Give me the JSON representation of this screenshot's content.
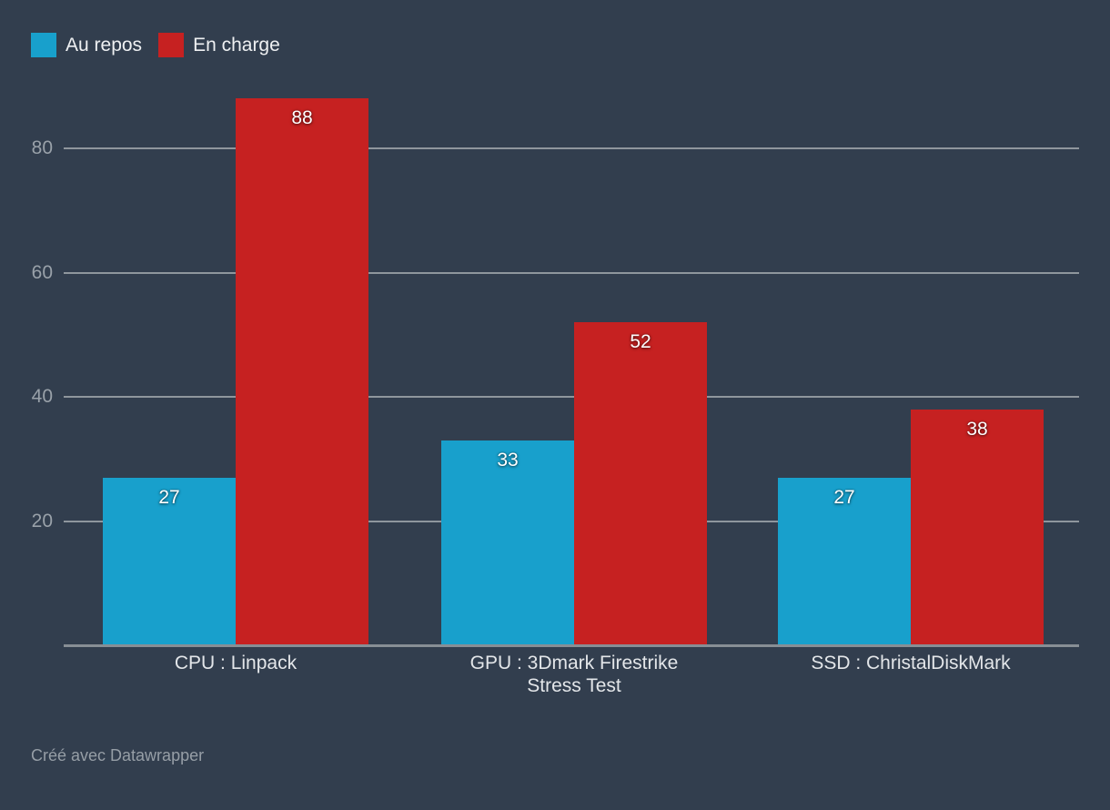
{
  "page": {
    "background_color": "#323e4e"
  },
  "legend": {
    "position": "top-left"
  },
  "chart_data": {
    "type": "bar",
    "categories": [
      "CPU : Linpack",
      "GPU : 3Dmark Firestrike\nStress Test",
      "SSD : ChristalDiskMark"
    ],
    "series": [
      {
        "name": "Au repos",
        "color": "#18a0cc",
        "values": [
          27,
          33,
          27
        ]
      },
      {
        "name": "En charge",
        "color": "#c62121",
        "values": [
          88,
          52,
          38
        ]
      }
    ],
    "yticks": [
      20,
      40,
      60,
      80
    ],
    "ylim": [
      0,
      90
    ],
    "grid": true,
    "legend_position": "top-left",
    "value_labels": true,
    "title": "",
    "xlabel": "",
    "ylabel": "",
    "footer": "Créé avec Datawrapper",
    "colors": {
      "background": "#323e4e",
      "gridline": "#8f969d",
      "axis_line": "#878e95",
      "tick_label": "#99a1a9",
      "category_label": "#e3e6e9",
      "value_label": "#ffffff",
      "legend_label": "#eef0f2",
      "footer_text": "#969ea6"
    }
  }
}
